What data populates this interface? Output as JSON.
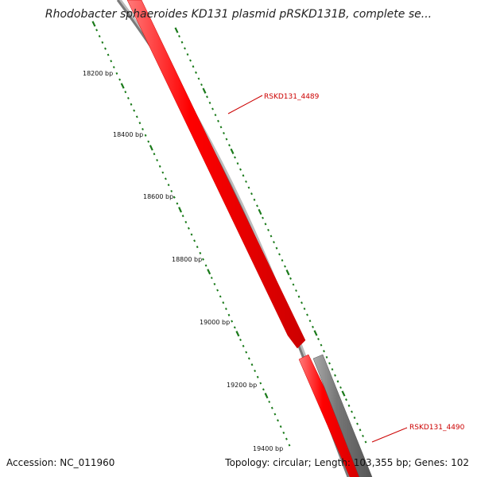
{
  "title": "Rhodobacter sphaeroides KD131 plasmid pRSKD131B, complete se...",
  "footer": {
    "accession": "Accession: NC_011960",
    "summary": "Topology: circular; Length: 103,355 bp; Genes: 102"
  },
  "ticks": [
    "18200 bp",
    "18400 bp",
    "18600 bp",
    "18800 bp",
    "19000 bp",
    "19200 bp",
    "19400 bp"
  ],
  "genes": [
    {
      "label": "RSKD131_4489",
      "strand": "forward"
    },
    {
      "label": "RSKD131_4490",
      "strand": "forward"
    }
  ],
  "colors": {
    "forward_gene": "#ff0000",
    "reverse_gene": "#808080",
    "backbone": "#7a7a7a",
    "tick": "#1a7a1a",
    "label_line": "#cc0000"
  }
}
